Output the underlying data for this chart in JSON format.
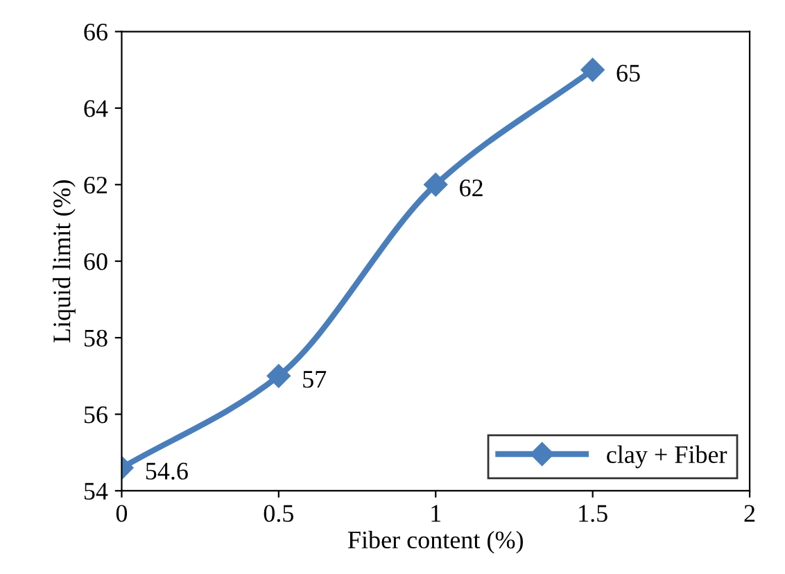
{
  "chart_data": {
    "type": "line",
    "xlabel": "Fiber content (%)",
    "ylabel": "Liquid limit (%)",
    "x": [
      0,
      0.5,
      1,
      1.5
    ],
    "series": [
      {
        "name": "clay + Fiber",
        "color": "#4a7ebb",
        "values": [
          54.6,
          57,
          62,
          65
        ]
      }
    ],
    "xlim": [
      0,
      2
    ],
    "xticks": [
      0,
      0.5,
      1,
      1.5,
      2
    ],
    "ylim": [
      54,
      66
    ],
    "yticks": [
      54,
      56,
      58,
      60,
      62,
      64,
      66
    ],
    "data_labels": true,
    "legend": "bottom right",
    "marker": "diamond",
    "line_style": "solid",
    "grid": false
  }
}
